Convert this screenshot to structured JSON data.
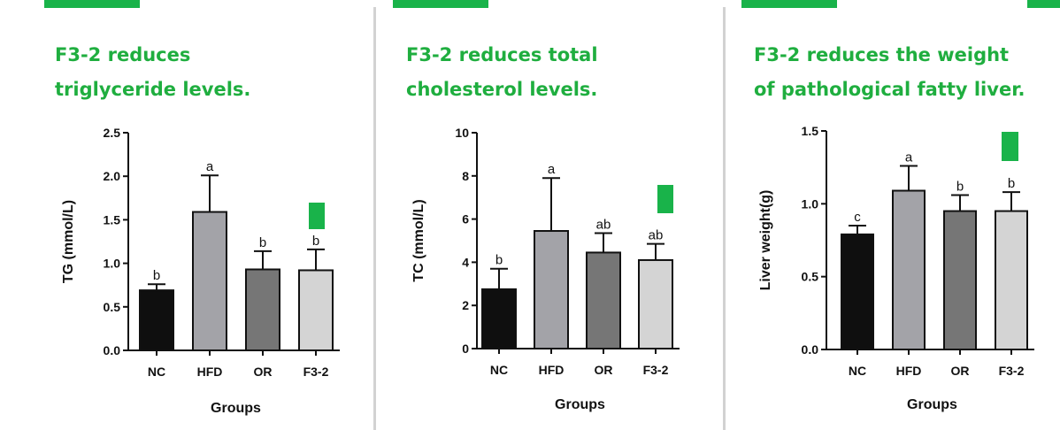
{
  "colors": {
    "accent": "#19b34a",
    "title": "#1fae3f",
    "divider": "#d2d2d2"
  },
  "panels": [
    {
      "title_lines": [
        "F3-2 reduces",
        "triglyceride levels."
      ],
      "highlight_group": "F3-2"
    },
    {
      "title_lines": [
        "F3-2 reduces total",
        "cholesterol levels."
      ],
      "highlight_group": "F3-2"
    },
    {
      "title_lines": [
        "F3-2 reduces the weight",
        "of pathological fatty liver."
      ],
      "highlight_group": "F3-2"
    }
  ],
  "chart_data": [
    {
      "type": "bar",
      "title": "",
      "xlabel": "Groups",
      "ylabel": "TG (mmol/L)",
      "categories": [
        "NC",
        "HFD",
        "OR",
        "F3-2"
      ],
      "values": [
        0.69,
        1.59,
        0.93,
        0.92
      ],
      "error": [
        0.07,
        0.42,
        0.21,
        0.24
      ],
      "significance": [
        "b",
        "a",
        "b",
        "b"
      ],
      "bar_colors": [
        "#0f0f0f",
        "#a3a3a8",
        "#767676",
        "#d4d4d4"
      ],
      "ylim": [
        0,
        2.5
      ],
      "yticks": [
        "0.0",
        "0.5",
        "1.0",
        "1.5",
        "2.0",
        "2.5"
      ],
      "grid": false,
      "legend": "none"
    },
    {
      "type": "bar",
      "title": "",
      "xlabel": "Groups",
      "ylabel": "TC (mmol/L)",
      "categories": [
        "NC",
        "HFD",
        "OR",
        "F3-2"
      ],
      "values": [
        2.75,
        5.45,
        4.45,
        4.1
      ],
      "error": [
        0.95,
        2.45,
        0.9,
        0.75
      ],
      "significance": [
        "b",
        "a",
        "ab",
        "ab"
      ],
      "bar_colors": [
        "#0f0f0f",
        "#a3a3a8",
        "#767676",
        "#d4d4d4"
      ],
      "ylim": [
        0,
        10
      ],
      "yticks": [
        "0",
        "2",
        "4",
        "6",
        "8",
        "10"
      ],
      "grid": false,
      "legend": "none"
    },
    {
      "type": "bar",
      "title": "",
      "xlabel": "Groups",
      "ylabel": "Liver weight(g)",
      "categories": [
        "NC",
        "HFD",
        "OR",
        "F3-2"
      ],
      "values": [
        0.79,
        1.09,
        0.95,
        0.95
      ],
      "error": [
        0.06,
        0.17,
        0.11,
        0.13
      ],
      "significance": [
        "c",
        "a",
        "b",
        "b"
      ],
      "bar_colors": [
        "#0f0f0f",
        "#a3a3a8",
        "#767676",
        "#d4d4d4"
      ],
      "ylim": [
        0,
        1.5
      ],
      "yticks": [
        "0.0",
        "0.5",
        "1.0",
        "1.5"
      ],
      "grid": false,
      "legend": "none"
    }
  ]
}
